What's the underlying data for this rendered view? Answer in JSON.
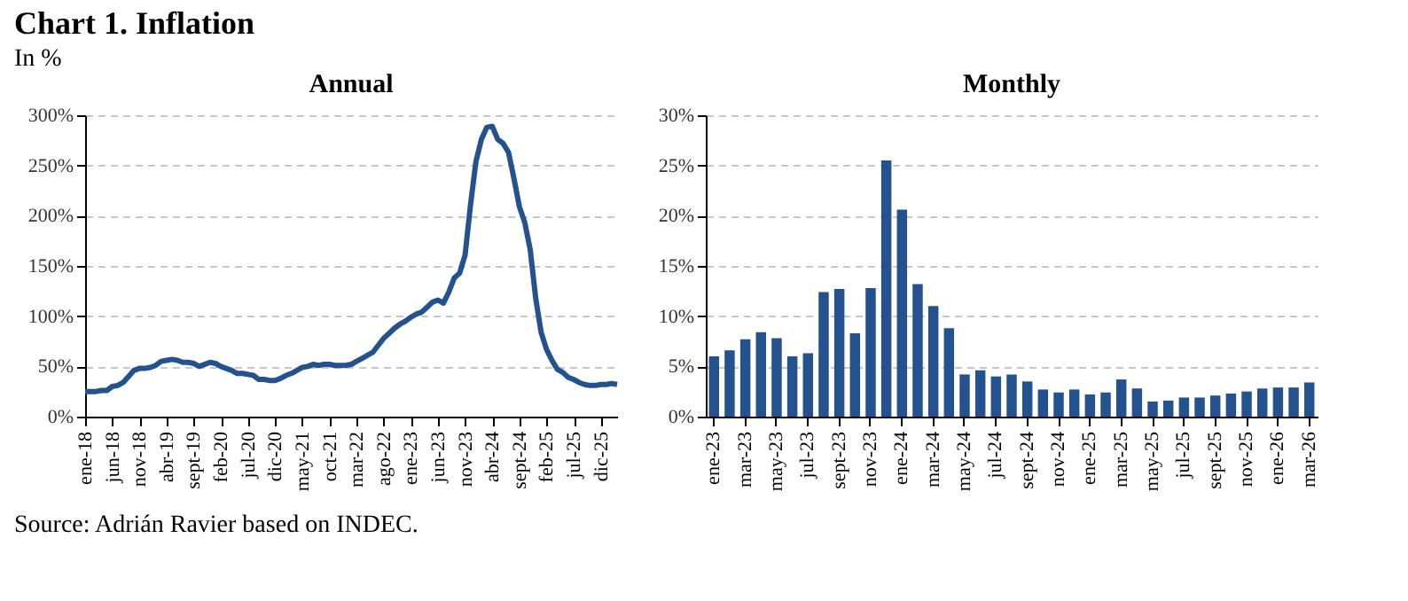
{
  "chart_data": [
    {
      "type": "other",
      "title": "Chart 1. Inflation",
      "subtitle": "In %",
      "annotations": [
        "Source: Adrián Ravier based on INDEC."
      ]
    },
    {
      "type": "line",
      "title": "Annual",
      "categories": [
        "ene-18",
        null,
        null,
        null,
        null,
        "jun-18",
        null,
        null,
        null,
        null,
        "nov-18",
        null,
        null,
        null,
        null,
        "abr-19",
        null,
        null,
        null,
        null,
        "sept-19",
        null,
        null,
        null,
        null,
        "feb-20",
        null,
        null,
        null,
        null,
        "jul-20",
        null,
        null,
        null,
        null,
        "dic-20",
        null,
        null,
        null,
        null,
        "may-21",
        null,
        null,
        null,
        null,
        "oct-21",
        null,
        null,
        null,
        null,
        "mar-22",
        null,
        null,
        null,
        null,
        "ago-22",
        null,
        null,
        null,
        null,
        "ene-23",
        null,
        null,
        null,
        null,
        "jun-23",
        null,
        null,
        null,
        null,
        "nov-23",
        null,
        null,
        null,
        null,
        "abr-24",
        null,
        null,
        null,
        null,
        "sept-24",
        null,
        null,
        null,
        null,
        "feb-25",
        null,
        null,
        null,
        null,
        "jul-25",
        null,
        null,
        null,
        null,
        "dic-25",
        null,
        null,
        null
      ],
      "series": [
        {
          "color": "#23528f",
          "values": [
            25,
            25,
            25,
            26,
            26,
            30,
            31,
            34,
            40,
            46,
            48,
            48,
            49,
            51,
            55,
            56,
            57,
            56,
            54,
            54,
            53,
            50,
            52,
            54,
            53,
            50,
            48,
            46,
            43,
            43,
            42,
            41,
            37,
            37,
            36,
            36,
            38,
            41,
            43,
            46,
            49,
            50,
            52,
            51,
            52,
            52,
            51,
            51,
            51,
            52,
            55,
            58,
            61,
            64,
            71,
            78,
            83,
            88,
            92,
            95,
            99,
            102,
            104,
            109,
            114,
            116,
            113,
            124,
            138,
            143,
            161,
            211,
            254,
            276,
            288,
            289,
            276,
            272,
            263,
            237,
            209,
            193,
            166,
            118,
            84,
            67,
            56,
            47,
            44,
            39,
            37,
            34,
            32,
            31,
            31,
            32,
            32,
            33,
            32
          ]
        }
      ],
      "ylim": [
        0,
        300
      ],
      "yticks": [
        {
          "value": 0,
          "label": "0%"
        },
        {
          "value": 50,
          "label": "50%"
        },
        {
          "value": 100,
          "label": "100%"
        },
        {
          "value": 150,
          "label": "150%"
        },
        {
          "value": 200,
          "label": "200%"
        },
        {
          "value": 250,
          "label": "250%"
        },
        {
          "value": 300,
          "label": "300%"
        }
      ],
      "grid": "y",
      "legend": false,
      "marker": "none",
      "line_style": "solid"
    },
    {
      "type": "bar",
      "title": "Monthly",
      "categories": [
        "ene-23",
        null,
        "mar-23",
        null,
        "may-23",
        null,
        "jul-23",
        null,
        "sept-23",
        null,
        "nov-23",
        null,
        "ene-24",
        null,
        "mar-24",
        null,
        "may-24",
        null,
        "jul-24",
        null,
        "sept-24",
        null,
        "nov-24",
        null,
        "ene-25",
        null,
        "mar-25",
        null,
        "may-25",
        null,
        "jul-25",
        null,
        "sept-25",
        null,
        "nov-25",
        null,
        "ene-26",
        null,
        "mar-26"
      ],
      "series": [
        {
          "color": "#23528f",
          "values": [
            6.0,
            6.6,
            7.7,
            8.4,
            7.8,
            6.0,
            6.3,
            12.4,
            12.7,
            8.3,
            12.8,
            25.5,
            20.6,
            13.2,
            11.0,
            8.8,
            4.2,
            4.6,
            4.0,
            4.2,
            3.5,
            2.7,
            2.4,
            2.7,
            2.2,
            2.4,
            3.7,
            2.8,
            1.5,
            1.6,
            1.9,
            1.9,
            2.1,
            2.3,
            2.5,
            2.8,
            2.9,
            2.9,
            3.4
          ]
        }
      ],
      "ylim": [
        0,
        30
      ],
      "yticks": [
        {
          "value": 0,
          "label": "0%"
        },
        {
          "value": 5,
          "label": "5%"
        },
        {
          "value": 10,
          "label": "10%"
        },
        {
          "value": 15,
          "label": "15%"
        },
        {
          "value": 20,
          "label": "20%"
        },
        {
          "value": 25,
          "label": "25%"
        },
        {
          "value": 30,
          "label": "30%"
        }
      ],
      "grid": "y",
      "legend": false
    }
  ]
}
